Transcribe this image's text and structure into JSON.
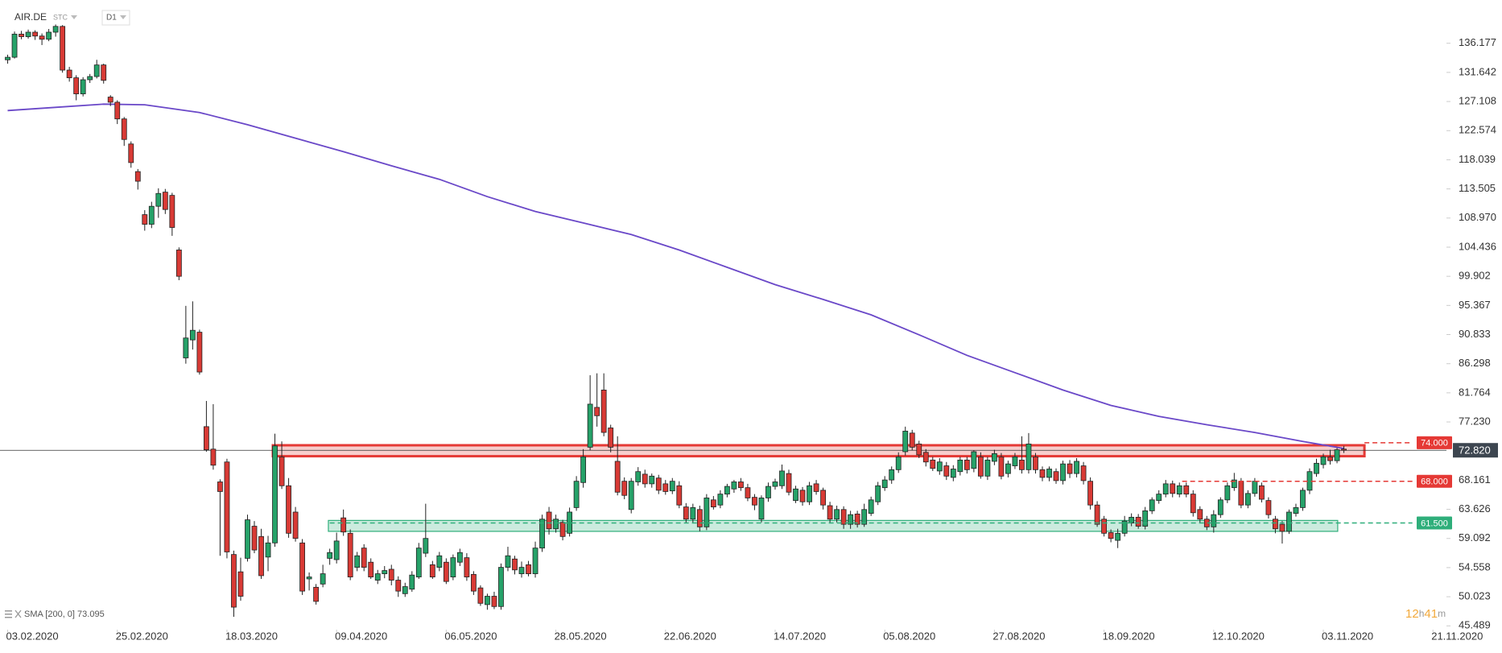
{
  "header": {
    "symbol": "AIR.DE",
    "type": "STC",
    "interval": "D1"
  },
  "chart_data": {
    "type": "candlestick",
    "xlim": [
      -1.12,
      209.97
    ],
    "ylim": [
      44.9,
      142.91
    ],
    "xticks": [
      {
        "value": 0,
        "label": "03.02.2020"
      },
      {
        "value": 16,
        "label": "25.02.2020"
      },
      {
        "value": 32,
        "label": "18.03.2020"
      },
      {
        "value": 48,
        "label": "09.04.2020"
      },
      {
        "value": 64,
        "label": "06.05.2020"
      },
      {
        "value": 80,
        "label": "28.05.2020"
      },
      {
        "value": 96,
        "label": "22.06.2020"
      },
      {
        "value": 112,
        "label": "14.07.2020"
      },
      {
        "value": 128,
        "label": "05.08.2020"
      },
      {
        "value": 144,
        "label": "27.08.2020"
      },
      {
        "value": 160,
        "label": "18.09.2020"
      },
      {
        "value": 176,
        "label": "12.10.2020"
      },
      {
        "value": 192,
        "label": "03.11.2020"
      },
      {
        "value": 208,
        "label": "21.11.2020"
      }
    ],
    "yticks": [
      136.177,
      131.642,
      127.108,
      122.574,
      118.039,
      113.505,
      {
        "value": 108.97,
        "label": "108.970"
      },
      104.436,
      99.902,
      95.367,
      90.833,
      86.298,
      81.764,
      {
        "value": 77.23,
        "label": "77.230"
      },
      68.161,
      63.626,
      59.092,
      54.558,
      50.023,
      45.489
    ],
    "up_color": "#26a269",
    "down_color": "#d83a35",
    "candles": [
      [
        133.6,
        134.4,
        133.0,
        134.0
      ],
      [
        134.0,
        138.0,
        133.8,
        137.6
      ],
      [
        137.6,
        138.1,
        136.8,
        137.2
      ],
      [
        137.2,
        138.3,
        136.9,
        137.9
      ],
      [
        137.9,
        138.2,
        136.7,
        137.3
      ],
      [
        137.3,
        137.7,
        135.9,
        136.8
      ],
      [
        136.8,
        138.4,
        136.5,
        137.9
      ],
      [
        137.9,
        139.1,
        137.2,
        138.8
      ],
      [
        138.8,
        139.0,
        131.6,
        132.0
      ],
      [
        132.0,
        132.5,
        130.2,
        130.8
      ],
      [
        130.8,
        131.2,
        127.3,
        128.3
      ],
      [
        128.3,
        130.9,
        127.9,
        130.5
      ],
      [
        130.5,
        131.4,
        130.0,
        131.0
      ],
      [
        131.0,
        133.6,
        130.7,
        132.8
      ],
      [
        132.8,
        133.0,
        129.9,
        130.4
      ],
      [
        127.8,
        128.1,
        126.4,
        127.0
      ],
      [
        127.0,
        127.3,
        123.6,
        124.4
      ],
      [
        124.4,
        124.7,
        120.2,
        121.2
      ],
      [
        120.5,
        120.9,
        116.8,
        117.6
      ],
      [
        116.2,
        116.6,
        113.4,
        114.7
      ],
      [
        109.5,
        110.2,
        107.0,
        108.0
      ],
      [
        108.0,
        111.5,
        107.4,
        110.8
      ],
      [
        110.8,
        113.6,
        109.0,
        112.8
      ],
      [
        113.0,
        113.5,
        109.6,
        110.3
      ],
      [
        112.5,
        112.9,
        106.2,
        107.5
      ],
      [
        104.0,
        104.4,
        99.3,
        99.9
      ],
      [
        87.2,
        95.3,
        86.3,
        90.3
      ],
      [
        90.0,
        96.0,
        88.5,
        91.5
      ],
      [
        91.2,
        91.6,
        84.6,
        85.0
      ],
      [
        76.5,
        80.5,
        72.6,
        72.9
      ],
      [
        73.0,
        80.0,
        69.8,
        70.5
      ],
      [
        67.9,
        68.3,
        56.4,
        66.4
      ],
      [
        71.0,
        71.5,
        56.0,
        57.0
      ],
      [
        56.6,
        57.2,
        46.9,
        48.4
      ],
      [
        53.9,
        56.1,
        49.4,
        50.1
      ],
      [
        56.0,
        62.8,
        55.5,
        62.0
      ],
      [
        61.0,
        61.8,
        56.8,
        57.3
      ],
      [
        59.4,
        60.6,
        52.8,
        53.3
      ],
      [
        56.2,
        59.5,
        54.0,
        58.4
      ],
      [
        58.4,
        75.4,
        57.8,
        73.5
      ],
      [
        71.8,
        74.2,
        66.8,
        67.3
      ],
      [
        67.3,
        68.5,
        59.2,
        59.9
      ],
      [
        63.2,
        64.0,
        58.6,
        59.1
      ],
      [
        58.4,
        59.0,
        50.3,
        50.9
      ],
      [
        52.8,
        53.8,
        51.0,
        53.1
      ],
      [
        51.5,
        52.0,
        48.8,
        49.3
      ],
      [
        52.0,
        55.0,
        51.5,
        53.6
      ],
      [
        56.0,
        57.5,
        55.0,
        56.9
      ],
      [
        55.8,
        60.0,
        55.2,
        58.7
      ],
      [
        62.3,
        63.6,
        59.5,
        60.1
      ],
      [
        59.9,
        60.5,
        52.6,
        53.1
      ],
      [
        54.6,
        57.0,
        54.0,
        56.4
      ],
      [
        57.6,
        58.2,
        54.0,
        54.6
      ],
      [
        55.4,
        56.0,
        52.8,
        53.1
      ],
      [
        52.6,
        54.2,
        52.0,
        53.6
      ],
      [
        53.6,
        54.8,
        52.9,
        54.1
      ],
      [
        54.3,
        55.0,
        51.8,
        52.6
      ],
      [
        52.6,
        53.2,
        50.0,
        50.9
      ],
      [
        50.5,
        52.2,
        50.0,
        51.6
      ],
      [
        51.2,
        54.0,
        50.8,
        53.4
      ],
      [
        53.1,
        58.4,
        52.8,
        57.6
      ],
      [
        56.8,
        64.5,
        56.2,
        59.1
      ],
      [
        55.0,
        55.6,
        52.8,
        53.1
      ],
      [
        54.6,
        57.0,
        54.0,
        56.4
      ],
      [
        55.4,
        56.0,
        52.0,
        52.4
      ],
      [
        53.1,
        56.6,
        52.6,
        56.1
      ],
      [
        55.4,
        57.5,
        54.8,
        56.9
      ],
      [
        56.1,
        56.8,
        52.5,
        53.1
      ],
      [
        53.5,
        54.0,
        50.3,
        50.9
      ],
      [
        51.4,
        51.8,
        48.6,
        49.0
      ],
      [
        48.8,
        50.5,
        48.0,
        50.1
      ],
      [
        50.1,
        50.8,
        48.1,
        48.5
      ],
      [
        48.5,
        55.2,
        48.0,
        54.6
      ],
      [
        54.6,
        57.8,
        54.0,
        56.4
      ],
      [
        55.9,
        56.4,
        53.5,
        54.2
      ],
      [
        53.6,
        55.5,
        53.0,
        54.6
      ],
      [
        55.0,
        55.6,
        53.2,
        53.6
      ],
      [
        53.6,
        58.6,
        53.0,
        57.6
      ],
      [
        57.6,
        62.8,
        57.0,
        62.1
      ],
      [
        63.2,
        64.0,
        59.7,
        60.6
      ],
      [
        60.6,
        62.8,
        60.0,
        62.1
      ],
      [
        61.6,
        62.0,
        58.8,
        59.4
      ],
      [
        59.9,
        63.9,
        59.4,
        63.2
      ],
      [
        63.9,
        68.8,
        63.4,
        68.0
      ],
      [
        67.8,
        73.0,
        67.0,
        71.8
      ],
      [
        73.3,
        84.5,
        72.8,
        80.0
      ],
      [
        79.5,
        84.8,
        76.5,
        78.2
      ],
      [
        82.2,
        84.8,
        75.0,
        75.6
      ],
      [
        76.3,
        76.8,
        72.5,
        73.3
      ],
      [
        71.1,
        75.0,
        65.8,
        66.3
      ],
      [
        68.0,
        68.6,
        65.2,
        65.8
      ],
      [
        63.6,
        68.5,
        63.0,
        68.0
      ],
      [
        67.9,
        70.2,
        67.3,
        69.5
      ],
      [
        69.1,
        69.8,
        67.0,
        67.6
      ],
      [
        67.6,
        69.2,
        67.0,
        68.8
      ],
      [
        68.5,
        69.0,
        66.0,
        66.6
      ],
      [
        67.6,
        68.2,
        65.9,
        66.4
      ],
      [
        66.5,
        68.5,
        66.0,
        68.0
      ],
      [
        67.3,
        68.0,
        63.8,
        64.3
      ],
      [
        64.0,
        64.6,
        61.5,
        62.1
      ],
      [
        62.1,
        64.5,
        61.5,
        63.9
      ],
      [
        63.6,
        64.2,
        60.2,
        60.9
      ],
      [
        60.9,
        66.0,
        60.4,
        65.4
      ],
      [
        65.1,
        65.7,
        63.6,
        64.0
      ],
      [
        64.3,
        66.6,
        63.8,
        66.0
      ],
      [
        66.0,
        67.6,
        65.5,
        67.2
      ],
      [
        66.8,
        68.2,
        66.2,
        67.9
      ],
      [
        67.9,
        68.5,
        66.5,
        67.0
      ],
      [
        67.0,
        67.6,
        64.9,
        65.4
      ],
      [
        65.5,
        66.0,
        63.5,
        64.3
      ],
      [
        62.1,
        65.8,
        61.6,
        65.4
      ],
      [
        65.4,
        67.8,
        64.8,
        67.2
      ],
      [
        67.2,
        68.4,
        66.7,
        67.9
      ],
      [
        67.3,
        70.6,
        66.8,
        69.6
      ],
      [
        69.2,
        69.8,
        65.8,
        66.3
      ],
      [
        65.0,
        67.3,
        64.6,
        66.8
      ],
      [
        66.6,
        67.1,
        64.2,
        64.8
      ],
      [
        64.8,
        67.9,
        64.3,
        67.3
      ],
      [
        67.6,
        68.2,
        65.9,
        66.4
      ],
      [
        66.6,
        67.0,
        63.6,
        64.3
      ],
      [
        64.2,
        64.8,
        61.5,
        62.1
      ],
      [
        62.1,
        64.2,
        61.6,
        63.6
      ],
      [
        63.6,
        64.1,
        60.6,
        61.3
      ],
      [
        61.3,
        63.4,
        60.6,
        62.8
      ],
      [
        62.9,
        63.4,
        60.8,
        61.3
      ],
      [
        61.3,
        64.5,
        60.9,
        63.6
      ],
      [
        63.0,
        65.6,
        62.6,
        65.1
      ],
      [
        64.8,
        67.9,
        64.3,
        67.3
      ],
      [
        67.0,
        68.8,
        66.5,
        68.2
      ],
      [
        68.2,
        70.3,
        67.6,
        69.8
      ],
      [
        69.8,
        72.5,
        69.3,
        71.8
      ],
      [
        72.6,
        76.5,
        72.0,
        75.8
      ],
      [
        75.5,
        76.0,
        72.8,
        73.3
      ],
      [
        73.8,
        74.3,
        71.6,
        72.1
      ],
      [
        72.5,
        73.0,
        70.3,
        71.0
      ],
      [
        71.3,
        71.8,
        69.6,
        70.0
      ],
      [
        69.6,
        71.6,
        69.0,
        71.0
      ],
      [
        70.4,
        71.0,
        68.2,
        68.8
      ],
      [
        68.6,
        70.5,
        68.0,
        69.9
      ],
      [
        69.5,
        71.8,
        68.9,
        71.3
      ],
      [
        71.3,
        71.8,
        69.2,
        69.8
      ],
      [
        70.0,
        72.8,
        69.4,
        72.6
      ],
      [
        71.8,
        72.5,
        68.4,
        68.8
      ],
      [
        68.8,
        71.8,
        68.2,
        71.3
      ],
      [
        71.1,
        72.9,
        70.5,
        72.3
      ],
      [
        71.8,
        72.4,
        68.3,
        68.8
      ],
      [
        69.2,
        71.2,
        68.6,
        70.7
      ],
      [
        70.4,
        72.4,
        69.9,
        71.8
      ],
      [
        71.3,
        75.0,
        69.2,
        69.8
      ],
      [
        69.8,
        75.5,
        69.2,
        73.8
      ],
      [
        71.8,
        72.4,
        69.2,
        69.8
      ],
      [
        69.8,
        70.3,
        68.0,
        68.6
      ],
      [
        68.6,
        70.3,
        68.0,
        69.9
      ],
      [
        69.5,
        70.0,
        67.6,
        68.1
      ],
      [
        68.1,
        71.2,
        67.5,
        70.7
      ],
      [
        70.7,
        71.3,
        68.5,
        69.2
      ],
      [
        69.2,
        71.6,
        68.6,
        71.1
      ],
      [
        70.4,
        71.0,
        67.5,
        68.1
      ],
      [
        68.0,
        68.6,
        63.6,
        64.3
      ],
      [
        64.3,
        64.9,
        60.9,
        61.3
      ],
      [
        62.1,
        62.6,
        59.4,
        59.9
      ],
      [
        60.0,
        60.5,
        58.5,
        59.1
      ],
      [
        58.8,
        60.6,
        57.6,
        59.9
      ],
      [
        59.9,
        62.6,
        59.4,
        61.8
      ],
      [
        61.5,
        63.0,
        61.0,
        62.4
      ],
      [
        62.4,
        62.9,
        60.6,
        61.0
      ],
      [
        61.0,
        64.0,
        60.5,
        63.4
      ],
      [
        63.4,
        65.5,
        62.9,
        65.1
      ],
      [
        65.0,
        66.6,
        64.5,
        66.0
      ],
      [
        66.0,
        68.2,
        65.5,
        67.6
      ],
      [
        67.6,
        68.1,
        65.5,
        66.1
      ],
      [
        66.0,
        67.8,
        65.5,
        67.3
      ],
      [
        67.3,
        67.8,
        65.5,
        66.0
      ],
      [
        66.0,
        66.6,
        62.5,
        63.1
      ],
      [
        63.6,
        64.1,
        61.5,
        62.1
      ],
      [
        62.1,
        62.6,
        60.4,
        60.9
      ],
      [
        60.9,
        63.5,
        60.0,
        62.8
      ],
      [
        62.8,
        65.5,
        62.3,
        65.1
      ],
      [
        65.1,
        67.8,
        64.6,
        67.3
      ],
      [
        67.0,
        69.3,
        66.5,
        68.2
      ],
      [
        68.0,
        68.5,
        63.8,
        64.3
      ],
      [
        64.3,
        66.6,
        63.8,
        66.1
      ],
      [
        66.1,
        68.5,
        65.6,
        68.0
      ],
      [
        67.3,
        67.8,
        64.7,
        65.2
      ],
      [
        65.0,
        65.5,
        62.2,
        62.8
      ],
      [
        62.1,
        62.6,
        59.9,
        60.6
      ],
      [
        61.3,
        61.8,
        58.3,
        60.2
      ],
      [
        60.2,
        63.6,
        59.8,
        63.2
      ],
      [
        63.0,
        64.5,
        62.5,
        63.9
      ],
      [
        63.9,
        67.0,
        63.4,
        66.6
      ],
      [
        66.6,
        70.0,
        66.0,
        69.5
      ],
      [
        69.2,
        71.5,
        68.7,
        70.8
      ],
      [
        70.6,
        72.3,
        70.0,
        71.8
      ],
      [
        71.8,
        72.9,
        70.6,
        71.2
      ],
      [
        71.2,
        73.2,
        70.8,
        72.9
      ],
      [
        73.0,
        73.5,
        72.4,
        72.82
      ]
    ],
    "sma": {
      "name": "SMA [200, 0] 73.095",
      "color": "#6a48c8",
      "x": [
        0,
        7,
        14,
        20,
        28,
        35,
        42,
        49,
        56,
        63,
        70,
        77,
        84,
        91,
        98,
        105,
        112,
        119,
        126,
        133,
        140,
        147,
        154,
        161,
        168,
        175,
        182,
        189,
        195
      ],
      "values": [
        125.7,
        126.2,
        126.7,
        126.6,
        125.4,
        123.5,
        121.4,
        119.3,
        117.1,
        115.0,
        112.3,
        110.0,
        108.2,
        106.4,
        104.0,
        101.3,
        98.6,
        96.3,
        93.9,
        90.8,
        87.6,
        84.9,
        82.2,
        79.8,
        78.1,
        76.8,
        75.6,
        74.2,
        73.1
      ]
    },
    "zones": [
      {
        "low": 71.9,
        "high": 73.6,
        "start": 38.7,
        "end": 198,
        "color": "#e53935"
      },
      {
        "low": 60.2,
        "high": 61.9,
        "start": 46.8,
        "end": 194.1,
        "color": "#2eae7a"
      }
    ],
    "levels": [
      {
        "value": 74,
        "label": "74.000",
        "start": 198,
        "end": 205,
        "color": "#e53935"
      },
      {
        "value": 68,
        "label": "68.000",
        "start": 171.4,
        "end": 205,
        "color": "#e53935"
      },
      {
        "value": 61.5,
        "label": "61.500",
        "start": 47,
        "end": 205,
        "color": "#2eae7a"
      }
    ],
    "last_price": {
      "value": 72.82,
      "label": "72.820",
      "color": "#3d4650"
    }
  },
  "countdown": [
    "12",
    "h",
    "41",
    "m"
  ]
}
